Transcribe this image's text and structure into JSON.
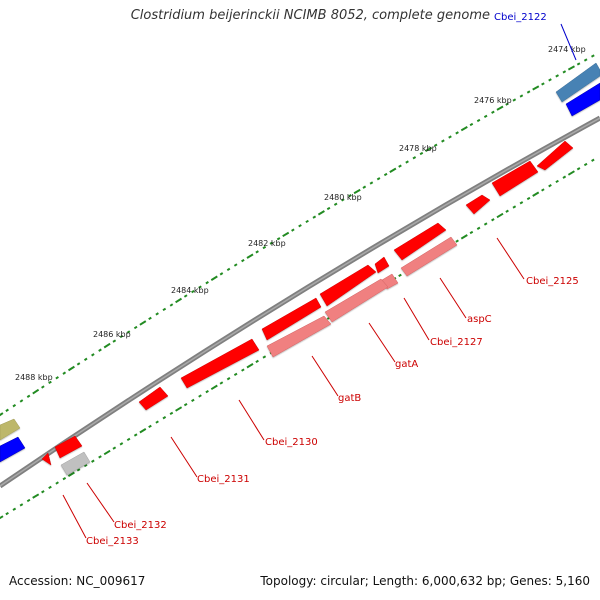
{
  "title": "Clostridium beijerinckii NCIMB 8052, complete genome",
  "footer": {
    "accession": "Accession: NC_009617",
    "summary": "Topology: circular; Length: 6,000,632 bp; Genes: 5,160"
  },
  "scale": {
    "unit": "kbp",
    "tick_labels": [
      "2474 kbp",
      "2476 kbp",
      "2478 kbp",
      "2480 kbp",
      "2482 kbp",
      "2484 kbp",
      "2486 kbp",
      "2488 kbp"
    ]
  },
  "colors": {
    "backbone": "#808080",
    "tick": "#228b22",
    "gene_red": "#ff0000",
    "gene_pink": "#f08080",
    "gene_grey": "#c0c0c0",
    "gene_blue": "#0000ff",
    "gene_steel": "#4682b4",
    "gene_olive": "#bdb76b",
    "label_red": "#cc0000",
    "label_blue": "#0000cc"
  },
  "gene_labels": [
    {
      "name": "Cbei_2122",
      "color": "blue"
    },
    {
      "name": "Cbei_2125",
      "color": "red"
    },
    {
      "name": "aspC",
      "color": "red"
    },
    {
      "name": "Cbei_2127",
      "color": "red"
    },
    {
      "name": "gatA",
      "color": "red"
    },
    {
      "name": "gatB",
      "color": "red"
    },
    {
      "name": "Cbei_2130",
      "color": "red"
    },
    {
      "name": "Cbei_2131",
      "color": "red"
    },
    {
      "name": "Cbei_2132",
      "color": "red"
    },
    {
      "name": "Cbei_2133",
      "color": "red"
    }
  ]
}
